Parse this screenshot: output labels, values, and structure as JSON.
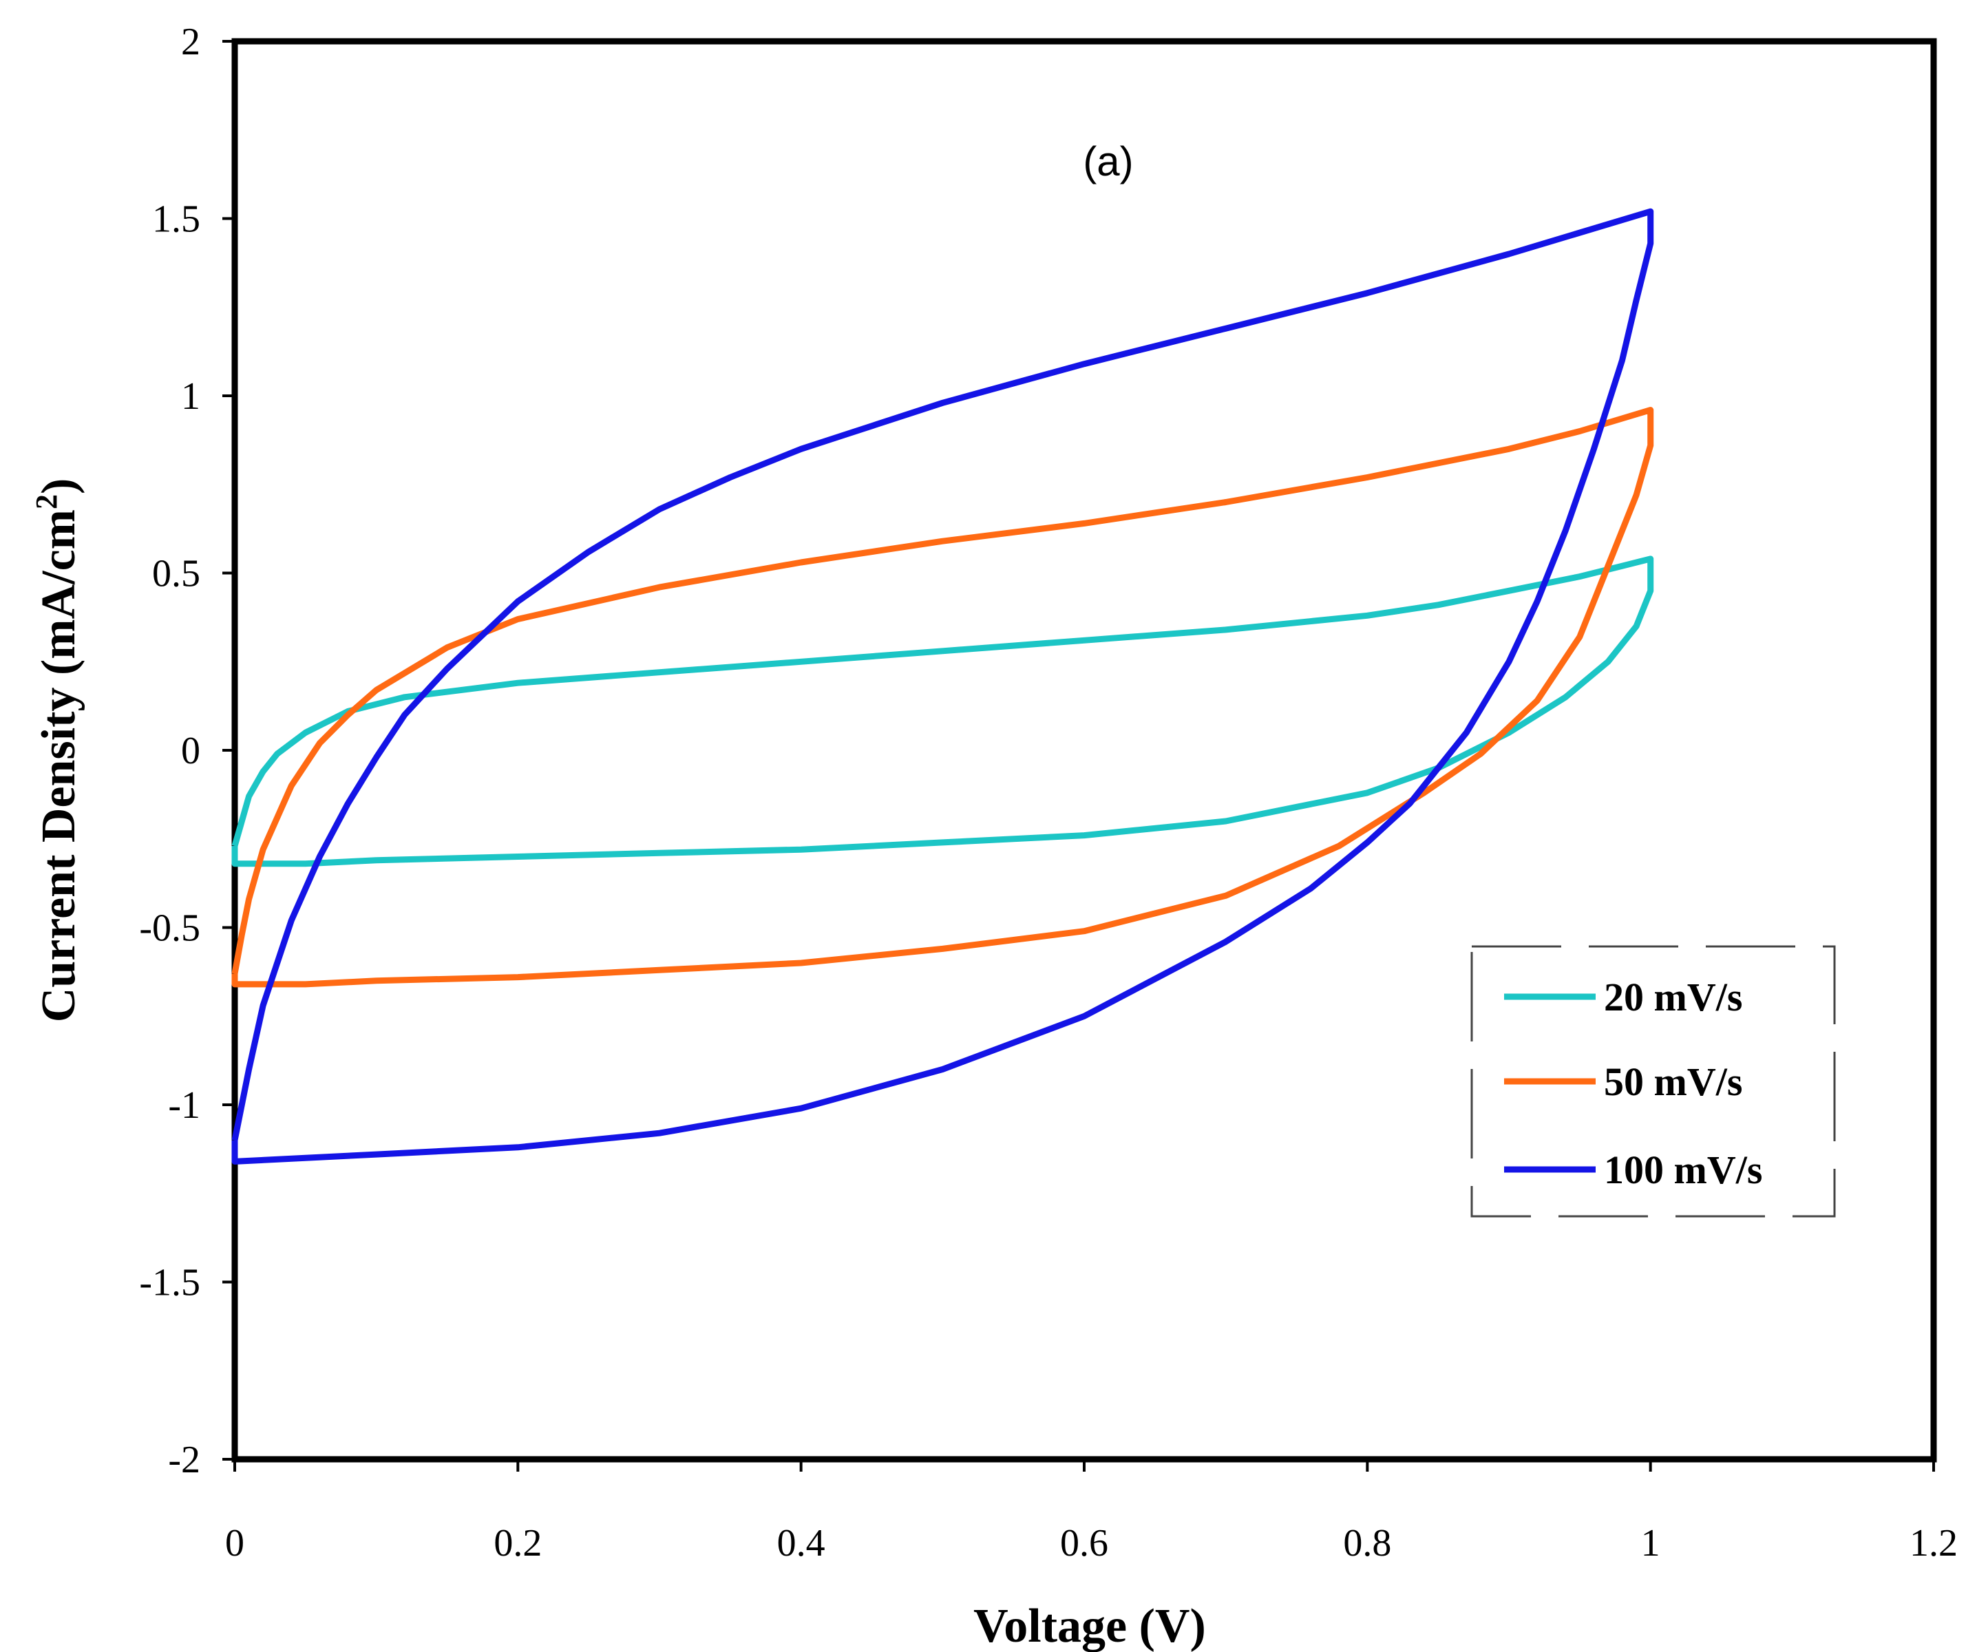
{
  "chart_data": {
    "type": "line",
    "title": "",
    "panel_label": "(a)",
    "xlabel": "Voltage (V)",
    "ylabel": "Current Density (mA/cm2)",
    "ylabel_main": "Current Density (mA/cm",
    "ylabel_sup": "2",
    "ylabel_tail": ")",
    "xlim": [
      0,
      1.2
    ],
    "ylim": [
      -2,
      2
    ],
    "x_ticks": [
      "0",
      "0.2",
      "0.4",
      "0.6",
      "0.8",
      "1",
      "1.2"
    ],
    "y_ticks": [
      "2",
      "1.5",
      "1",
      "0.5",
      "0",
      "-0.5",
      "-1",
      "-1.5",
      "-2"
    ],
    "grid": false,
    "legend_position": "right-middle",
    "series": [
      {
        "name": "20 mV/s",
        "color": "#1cc5c5",
        "x": [
          0,
          0.005,
          0.01,
          0.02,
          0.03,
          0.05,
          0.08,
          0.12,
          0.2,
          0.3,
          0.4,
          0.5,
          0.6,
          0.7,
          0.8,
          0.85,
          0.9,
          0.95,
          0.98,
          1.0,
          1.0,
          0.99,
          0.97,
          0.94,
          0.9,
          0.85,
          0.8,
          0.7,
          0.6,
          0.5,
          0.4,
          0.3,
          0.2,
          0.1,
          0.05,
          0.0,
          0
        ],
        "y": [
          -0.27,
          -0.2,
          -0.13,
          -0.06,
          -0.01,
          0.05,
          0.11,
          0.15,
          0.19,
          0.22,
          0.25,
          0.28,
          0.31,
          0.34,
          0.38,
          0.41,
          0.45,
          0.49,
          0.52,
          0.54,
          0.45,
          0.35,
          0.25,
          0.15,
          0.05,
          -0.05,
          -0.12,
          -0.2,
          -0.24,
          -0.26,
          -0.28,
          -0.29,
          -0.3,
          -0.31,
          -0.32,
          -0.32,
          -0.27
        ]
      },
      {
        "name": "50 mV/s",
        "color": "#ff6a13",
        "x": [
          0,
          0.005,
          0.01,
          0.02,
          0.04,
          0.06,
          0.08,
          0.1,
          0.15,
          0.2,
          0.3,
          0.4,
          0.5,
          0.6,
          0.7,
          0.8,
          0.9,
          0.95,
          1.0,
          1.0,
          0.99,
          0.97,
          0.95,
          0.92,
          0.88,
          0.84,
          0.78,
          0.7,
          0.6,
          0.5,
          0.4,
          0.3,
          0.2,
          0.1,
          0.05,
          0,
          0
        ],
        "y": [
          -0.63,
          -0.52,
          -0.42,
          -0.28,
          -0.1,
          0.02,
          0.1,
          0.17,
          0.29,
          0.37,
          0.46,
          0.53,
          0.59,
          0.64,
          0.7,
          0.77,
          0.85,
          0.9,
          0.96,
          0.86,
          0.72,
          0.52,
          0.32,
          0.14,
          -0.01,
          -0.12,
          -0.27,
          -0.41,
          -0.51,
          -0.56,
          -0.6,
          -0.62,
          -0.64,
          -0.65,
          -0.66,
          -0.66,
          -0.63
        ]
      },
      {
        "name": "100 mV/s",
        "color": "#1414e6",
        "x": [
          0,
          0.005,
          0.01,
          0.02,
          0.04,
          0.06,
          0.08,
          0.1,
          0.12,
          0.15,
          0.2,
          0.25,
          0.3,
          0.35,
          0.4,
          0.5,
          0.6,
          0.7,
          0.8,
          0.9,
          1.0,
          1.0,
          0.99,
          0.98,
          0.96,
          0.94,
          0.92,
          0.9,
          0.87,
          0.83,
          0.8,
          0.76,
          0.7,
          0.6,
          0.5,
          0.4,
          0.3,
          0.2,
          0.1,
          0.05,
          0,
          0
        ],
        "y": [
          -1.1,
          -1.0,
          -0.9,
          -0.72,
          -0.48,
          -0.3,
          -0.15,
          -0.02,
          0.1,
          0.23,
          0.42,
          0.56,
          0.68,
          0.77,
          0.85,
          0.98,
          1.09,
          1.19,
          1.29,
          1.4,
          1.52,
          1.43,
          1.27,
          1.1,
          0.85,
          0.62,
          0.42,
          0.25,
          0.05,
          -0.15,
          -0.26,
          -0.39,
          -0.54,
          -0.75,
          -0.9,
          -1.01,
          -1.08,
          -1.12,
          -1.14,
          -1.15,
          -1.16,
          -1.1
        ]
      }
    ]
  }
}
